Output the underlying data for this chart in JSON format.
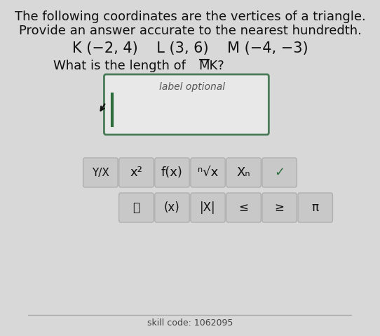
{
  "line1": "The following coordinates are the vertices of a triangle.",
  "line2": "Provide an answer accurate to the nearest hundredth.",
  "line3_parts": [
    "K (−2, 4)",
    "L (3, 6)",
    "M (−4, −3)"
  ],
  "line4_prefix": "What is the length of ",
  "line4_overline": "MK",
  "line4_suffix": "?",
  "input_placeholder": "label optional",
  "bg_color": "#d8d8d8",
  "input_bg": "#e8e8e8",
  "input_border": "#4a7c59",
  "button_bg": "#c8c8c8",
  "button_border": "#b0b0b0",
  "text_color": "#111111",
  "row1_buttons": [
    "Y/X",
    "x²",
    "f(x)",
    "ⁿ√x",
    "Xₙ",
    "✓"
  ],
  "row2_buttons": [
    "🗑",
    "(x)",
    "|X|",
    "≤",
    "≥",
    "π"
  ],
  "cursor_color": "#2e6e3e",
  "check_color": "#2e6e3e",
  "font_size_main": 13,
  "font_size_coords": 14,
  "font_size_question": 13
}
